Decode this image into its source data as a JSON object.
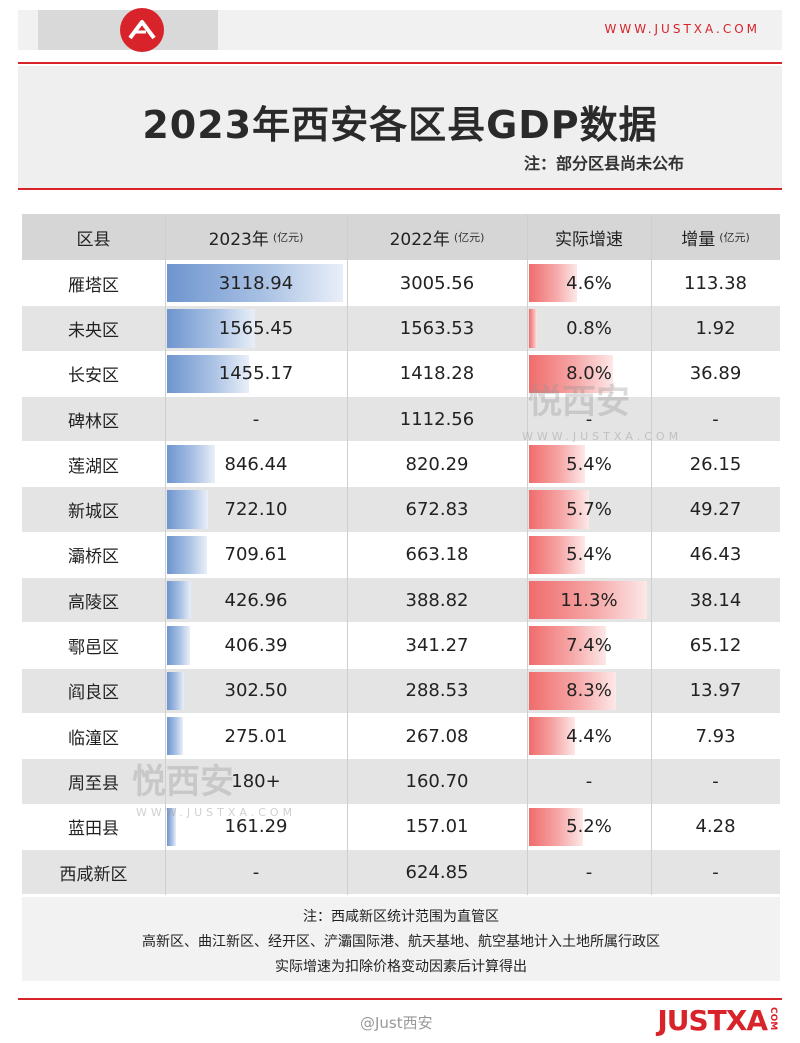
{
  "header": {
    "site_url": "WWW.JUSTXA.COM"
  },
  "title": "2023年西安各区县GDP数据",
  "subnote": "注：部分区县尚未公布",
  "table": {
    "headers": [
      {
        "label": "区县",
        "unit": ""
      },
      {
        "label": "2023年",
        "unit": "(亿元)"
      },
      {
        "label": "2022年",
        "unit": "(亿元)"
      },
      {
        "label": "实际增速",
        "unit": ""
      },
      {
        "label": "增量",
        "unit": "(亿元)"
      }
    ],
    "rows": [
      {
        "district": "雁塔区",
        "gdp2023": "3118.94",
        "gdp2022": "3005.56",
        "growth": "4.6%",
        "increase": "113.38",
        "gdp_bar": 3118.94,
        "growth_bar": 4.6
      },
      {
        "district": "未央区",
        "gdp2023": "1565.45",
        "gdp2022": "1563.53",
        "growth": "0.8%",
        "increase": "1.92",
        "gdp_bar": 1565.45,
        "growth_bar": 0.8
      },
      {
        "district": "长安区",
        "gdp2023": "1455.17",
        "gdp2022": "1418.28",
        "growth": "8.0%",
        "increase": "36.89",
        "gdp_bar": 1455.17,
        "growth_bar": 8.0
      },
      {
        "district": "碑林区",
        "gdp2023": "-",
        "gdp2022": "1112.56",
        "growth": "-",
        "increase": "-",
        "gdp_bar": 0,
        "growth_bar": 0
      },
      {
        "district": "莲湖区",
        "gdp2023": "846.44",
        "gdp2022": "820.29",
        "growth": "5.4%",
        "increase": "26.15",
        "gdp_bar": 846.44,
        "growth_bar": 5.4
      },
      {
        "district": "新城区",
        "gdp2023": "722.10",
        "gdp2022": "672.83",
        "growth": "5.7%",
        "increase": "49.27",
        "gdp_bar": 722.1,
        "growth_bar": 5.7
      },
      {
        "district": "灞桥区",
        "gdp2023": "709.61",
        "gdp2022": "663.18",
        "growth": "5.4%",
        "increase": "46.43",
        "gdp_bar": 709.61,
        "growth_bar": 5.4
      },
      {
        "district": "高陵区",
        "gdp2023": "426.96",
        "gdp2022": "388.82",
        "growth": "11.3%",
        "increase": "38.14",
        "gdp_bar": 426.96,
        "growth_bar": 11.3
      },
      {
        "district": "鄠邑区",
        "gdp2023": "406.39",
        "gdp2022": "341.27",
        "growth": "7.4%",
        "increase": "65.12",
        "gdp_bar": 406.39,
        "growth_bar": 7.4
      },
      {
        "district": "阎良区",
        "gdp2023": "302.50",
        "gdp2022": "288.53",
        "growth": "8.3%",
        "increase": "13.97",
        "gdp_bar": 302.5,
        "growth_bar": 8.3
      },
      {
        "district": "临潼区",
        "gdp2023": "275.01",
        "gdp2022": "267.08",
        "growth": "4.4%",
        "increase": "7.93",
        "gdp_bar": 275.01,
        "growth_bar": 4.4
      },
      {
        "district": "周至县",
        "gdp2023": "180+",
        "gdp2022": "160.70",
        "growth": "-",
        "increase": "-",
        "gdp_bar": 0,
        "growth_bar": 0
      },
      {
        "district": "蓝田县",
        "gdp2023": "161.29",
        "gdp2022": "157.01",
        "growth": "5.2%",
        "increase": "4.28",
        "gdp_bar": 161.29,
        "growth_bar": 5.2
      },
      {
        "district": "西咸新区",
        "gdp2023": "-",
        "gdp2022": "624.85",
        "growth": "-",
        "increase": "-",
        "gdp_bar": 0,
        "growth_bar": 0
      }
    ],
    "gdp_bar_max": 3118.94,
    "growth_bar_max": 11.3
  },
  "notes": [
    "注：西咸新区统计范围为直管区",
    "高新区、曲江新区、经开区、浐灞国际港、航天基地、航空基地计入土地所属行政区",
    "实际增速为扣除价格变动因素后计算得出"
  ],
  "watermark": {
    "text": "悦西安",
    "sub": "WWW.JUSTXA.COM"
  },
  "footer": {
    "handle": "@Just西安",
    "logo": "JUSTXA",
    "logo_suffix": "COM"
  },
  "colors": {
    "accent": "#d8232a",
    "bar_blue": "#6e95cf",
    "bar_red": "#f06c6c"
  }
}
